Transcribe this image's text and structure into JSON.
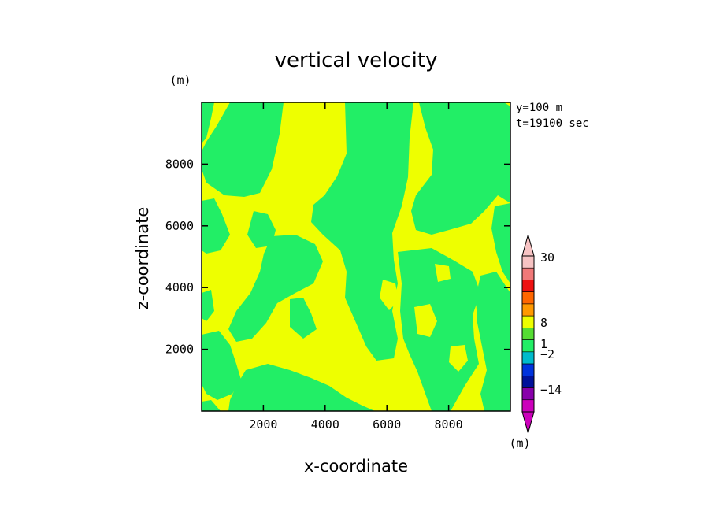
{
  "chart_data": {
    "type": "contour",
    "title": "vertical velocity",
    "xlabel": "x-coordinate",
    "ylabel": "z-coordinate",
    "y_unit": "(m)",
    "annotations": [
      "y=100 m",
      "t=19100 sec"
    ],
    "xlim": [
      0,
      10000
    ],
    "ylim": [
      0,
      10000
    ],
    "xticks": [
      2000,
      4000,
      6000,
      8000
    ],
    "yticks": [
      2000,
      4000,
      6000,
      8000
    ],
    "xtick_labels": [
      "2000",
      "4000",
      "6000",
      "8000"
    ],
    "ytick_labels": [
      "2000",
      "4000",
      "6000",
      "8000"
    ],
    "field_colors": {
      "positive": "#eeff00",
      "negative": "#22ee66"
    },
    "colorbar": {
      "unit": "(m)",
      "labels": [
        "30",
        "8",
        "1",
        "−2",
        "−14"
      ],
      "segments": [
        {
          "color": "#f7c3c3",
          "from": 13,
          "to": 30
        },
        {
          "color": "#f07878",
          "from": 8,
          "to": 13
        },
        {
          "color": "#ee1111",
          "from": 3,
          "to": 8
        },
        {
          "color": "#ff6600",
          "from": 2,
          "to": 3
        },
        {
          "color": "#ff9900",
          "from": 1,
          "to": 2
        },
        {
          "color": "#eeff00",
          "from": 0.5,
          "to": 1
        },
        {
          "color": "#55dd33",
          "from": 0,
          "to": 0.5
        },
        {
          "color": "#22ee66",
          "from": -1,
          "to": 0
        },
        {
          "color": "#00bbcc",
          "from": -2,
          "to": -1
        },
        {
          "color": "#0033dd",
          "from": -4,
          "to": -2
        },
        {
          "color": "#00119a",
          "from": -8,
          "to": -4
        },
        {
          "color": "#8800aa",
          "from": -14,
          "to": -8
        },
        {
          "color": "#cc00bb",
          "from": -30,
          "to": -14
        }
      ]
    }
  }
}
